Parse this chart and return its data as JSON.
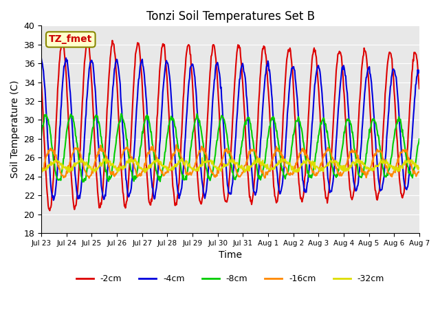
{
  "title": "Tonzi Soil Temperatures Set B",
  "xlabel": "Time",
  "ylabel": "Soil Temperature (C)",
  "ylim": [
    18,
    40
  ],
  "annotation": "TZ_fmet",
  "legend_labels": [
    "-2cm",
    "-4cm",
    "-8cm",
    "-16cm",
    "-32cm"
  ],
  "line_colors": [
    "#dd0000",
    "#0000dd",
    "#00cc00",
    "#ff8800",
    "#dddd00"
  ],
  "line_widths": [
    1.5,
    1.5,
    1.5,
    1.5,
    1.5
  ],
  "background_color": "#e8e8e8",
  "tick_labels": [
    "Jul 23",
    "Jul 24",
    "Jul 25",
    "Jul 26",
    "Jul 27",
    "Jul 28",
    "Jul 29",
    "Jul 30",
    "Jul 31",
    "Aug 1",
    "Aug 2",
    "Aug 3",
    "Aug 4",
    "Aug 5",
    "Aug 6",
    "Aug 7"
  ],
  "n_days": 15,
  "amplitudes": [
    9.0,
    7.5,
    3.5,
    1.5,
    0.5
  ],
  "means": [
    29.5,
    29.0,
    27.0,
    25.5,
    25.2
  ],
  "phase_offsets": [
    0.0,
    0.15,
    0.35,
    0.55,
    0.75
  ],
  "pts_per_day": 48
}
